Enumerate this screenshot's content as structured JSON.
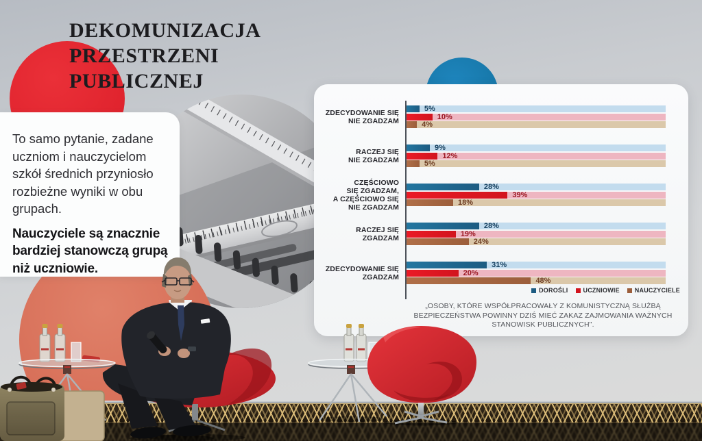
{
  "slide": {
    "title_lines": [
      "DEKOMUNIZACJA",
      "PRZESTRZENI",
      "PUBLICZNEJ"
    ],
    "intro_text": "To samo pytanie, zadane uczniom i nauczycielom szkół średnich przyniosło rozbieżne wyniki w obu grupach.",
    "highlight_text": "Nauczyciele są znacznie bardziej stanowczą grupą niż uczniowie."
  },
  "chart_data": {
    "type": "bar",
    "orientation": "horizontal",
    "unit": "%",
    "xlim": [
      0,
      100
    ],
    "grid": false,
    "legend_position": "bottom-right",
    "categories": [
      "ZDECYDOWANIE SIĘ NIE ZGADZAM",
      "RACZEJ SIĘ NIE ZGADZAM",
      "CZĘŚCIOWO SIĘ ZGADZAM, A CZĘŚCIOWO SIĘ NIE ZGADZAM",
      "RACZEJ SIĘ ZGADZAM",
      "ZDECYDOWANIE SIĘ ZGADZAM"
    ],
    "category_lines": [
      [
        "ZDECYDOWANIE SIĘ",
        "NIE ZGADZAM"
      ],
      [
        "RACZEJ SIĘ",
        "NIE ZGADZAM"
      ],
      [
        "CZĘŚCIOWO",
        "SIĘ ZGADZAM,",
        "A CZĘŚCIOWO SIĘ",
        "NIE ZGADZAM"
      ],
      [
        "RACZEJ SIĘ",
        "ZGADZAM"
      ],
      [
        "ZDECYDOWANIE SIĘ",
        "ZGADZAM"
      ]
    ],
    "series": [
      {
        "name": "DOROŚLI",
        "values": [
          5,
          9,
          28,
          28,
          31
        ],
        "color": "#2376a0",
        "color2": "#1d5c82",
        "track_color": "#c3dcee",
        "value_color": "#16405f"
      },
      {
        "name": "UCZNIOWIE",
        "values": [
          10,
          12,
          39,
          19,
          20
        ],
        "color": "#ea1b26",
        "color2": "#d2141e",
        "track_color": "#eeb6c1",
        "value_color": "#9a1722"
      },
      {
        "name": "NAUCZYCIELE",
        "values": [
          4,
          5,
          18,
          24,
          48
        ],
        "color": "#b06f48",
        "color2": "#9c5e3b",
        "track_color": "#dbc8aa",
        "value_color": "#6e3d22"
      }
    ],
    "legend": [
      "DOROŚLI",
      "UCZNIOWIE",
      "NAUCZYCIELE"
    ],
    "caption": "„OSOBY, KTÓRE WSPÓŁPRACOWAŁY Z KOMUNISTYCZNĄ SŁUŻBĄ BEZPIECZEŃSTWA POWINNY DZIŚ MIEĆ ZAKAZ ZAJMOWANIA WAŻNYCH STANOWISK PUBLICZNYCH\"."
  },
  "scene": {
    "accent_red": "#dc1e29",
    "accent_salmon": "#d9705c",
    "accent_blue": "#1779b2",
    "chair_red": "#d5262d"
  }
}
